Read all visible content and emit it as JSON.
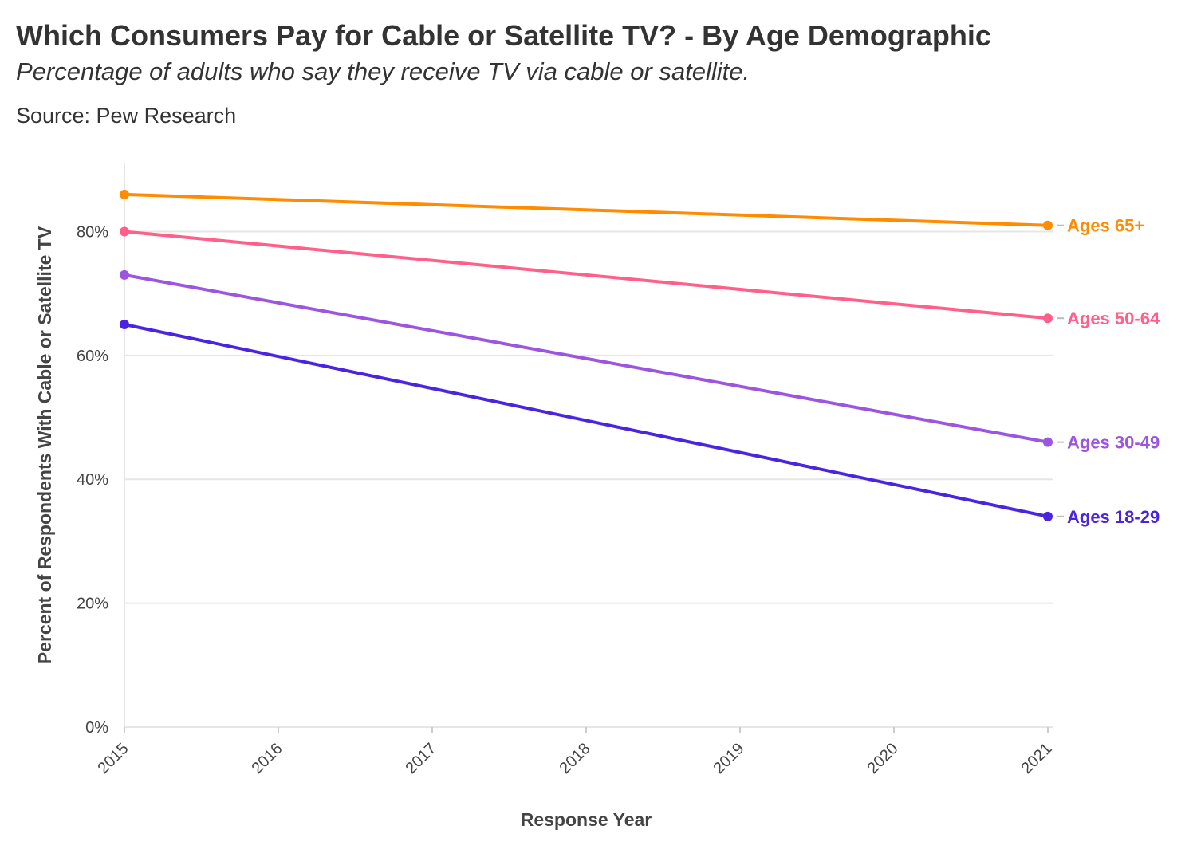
{
  "header": {
    "title": "Which Consumers Pay for Cable or Satellite TV? - By Age Demographic",
    "subtitle": "Percentage of adults who say they receive TV via cable or satellite.",
    "source": "Source: Pew Research"
  },
  "chart_data": {
    "type": "line",
    "title": "Which Consumers Pay for Cable or Satellite TV? - By Age Demographic",
    "subtitle": "Percentage of adults who say they receive TV via cable or satellite.",
    "xlabel": "Response Year",
    "ylabel": "Percent of Respondents With Cable or Satellite TV",
    "x_ticks": [
      "2015",
      "2016",
      "2017",
      "2018",
      "2019",
      "2020",
      "2021"
    ],
    "xlim": [
      2015,
      2021
    ],
    "ylim": [
      0,
      91
    ],
    "y_ticks": [
      0,
      20,
      40,
      60,
      80
    ],
    "y_tick_labels": [
      "0%",
      "20%",
      "40%",
      "60%",
      "80%"
    ],
    "grid": true,
    "series": [
      {
        "name": "Ages 65+",
        "color": "#FF8C00",
        "points": [
          {
            "x": 2015,
            "y": 86
          },
          {
            "x": 2021,
            "y": 81
          }
        ]
      },
      {
        "name": "Ages 50-64",
        "color": "#FF5F89",
        "points": [
          {
            "x": 2015,
            "y": 80
          },
          {
            "x": 2021,
            "y": 66
          }
        ]
      },
      {
        "name": "Ages 30-49",
        "color": "#9B55E0",
        "points": [
          {
            "x": 2015,
            "y": 73
          },
          {
            "x": 2021,
            "y": 46
          }
        ]
      },
      {
        "name": "Ages 18-29",
        "color": "#4A24E0",
        "points": [
          {
            "x": 2015,
            "y": 65
          },
          {
            "x": 2021,
            "y": 34
          }
        ]
      }
    ]
  }
}
